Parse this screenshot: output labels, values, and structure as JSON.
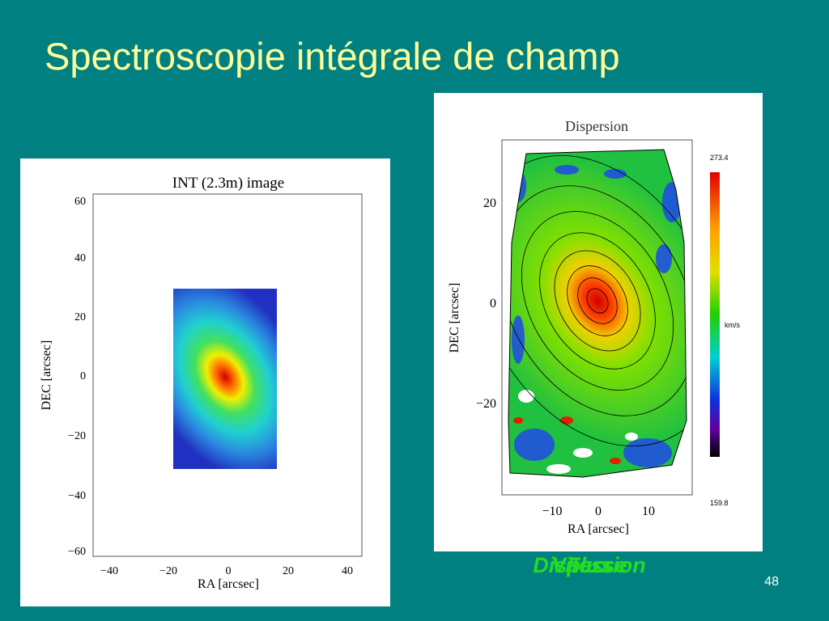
{
  "slide": {
    "title": "Spectroscopie intégrale de champ",
    "page_number": "48",
    "left_plot": {
      "title": "INT (2.3m) image",
      "xlabel": "RA [arcsec]",
      "ylabel": "DEC [arcsec]",
      "xticks": [
        "−40",
        "−20",
        "0",
        "20",
        "40"
      ],
      "yticks": [
        "60",
        "40",
        "20",
        "0",
        "−20",
        "−40",
        "−60"
      ]
    },
    "right_plot": {
      "title": "Dispersion",
      "xlabel": "RA [arcsec]",
      "ylabel": "DEC [arcsec]",
      "xticks": [
        "−10",
        "0",
        "10"
      ],
      "yticks": [
        "20",
        "0",
        "−20"
      ],
      "colorbar": {
        "max": "273.4",
        "unit": "km/s",
        "min": "159.8"
      }
    },
    "captions": [
      "Dispersion",
      "Vitesse",
      "Flux"
    ]
  }
}
